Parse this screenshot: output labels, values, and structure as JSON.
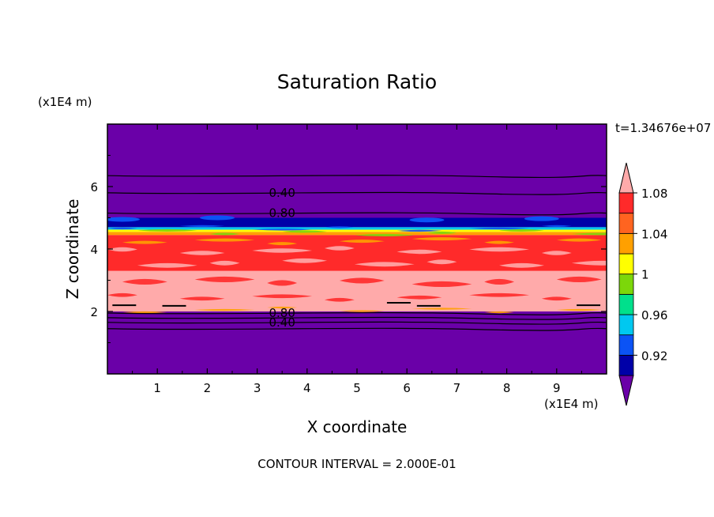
{
  "chart_data": {
    "type": "contour",
    "title": "Saturation Ratio",
    "xlabel": "X coordinate",
    "ylabel": "Z coordinate",
    "x_unit": "(x1E4 m)",
    "y_unit": "(x1E4 m)",
    "time_label": "t=1.34676e+07",
    "xlim": [
      0,
      10
    ],
    "ylim": [
      0,
      8
    ],
    "xticks": [
      "1",
      "2",
      "3",
      "4",
      "5",
      "6",
      "7",
      "8",
      "9"
    ],
    "yticks": [
      "2",
      "4",
      "6"
    ],
    "contour_interval_text": "CONTOUR INTERVAL = 2.000E-01",
    "contour_labels": [
      {
        "text": "0.40",
        "x": 3.5,
        "z": 5.8
      },
      {
        "text": "0.80",
        "x": 3.5,
        "z": 5.15
      },
      {
        "text": "0.80",
        "x": 3.5,
        "z": 1.95
      },
      {
        "text": "0.40",
        "x": 3.5,
        "z": 1.65
      }
    ],
    "colorbar": {
      "levels": [
        0.9,
        0.92,
        0.94,
        0.96,
        0.98,
        1.0,
        1.02,
        1.04,
        1.06,
        1.08,
        1.1
      ],
      "tick_labels": [
        {
          "text": "1.08",
          "value": 1.08
        },
        {
          "text": "1.04",
          "value": 1.04
        },
        {
          "text": "1",
          "value": 1.0
        },
        {
          "text": "0.96",
          "value": 0.96
        },
        {
          "text": "0.92",
          "value": 0.92
        }
      ],
      "colors": [
        "#6a00a8",
        "#0000a8",
        "#0b53f5",
        "#00c8f0",
        "#00e08c",
        "#7cd70a",
        "#ffff00",
        "#ffa000",
        "#ff6420",
        "#ff2a2a",
        "#ffaaaa"
      ]
    },
    "bands": [
      {
        "z0": 0.0,
        "z1": 2.0,
        "color": "#6a00a8"
      },
      {
        "z0": 2.0,
        "z1": 3.3,
        "color": "#ffaaaa"
      },
      {
        "z0": 3.3,
        "z1": 4.45,
        "color": "#ff2a2a"
      },
      {
        "z0": 4.45,
        "z1": 4.55,
        "color": "#ffa000"
      },
      {
        "z0": 4.55,
        "z1": 4.62,
        "color": "#ffff00"
      },
      {
        "z0": 4.62,
        "z1": 4.7,
        "color": "#00c8f0"
      },
      {
        "z0": 4.7,
        "z1": 5.0,
        "color": "#0000a8"
      },
      {
        "z0": 5.0,
        "z1": 8.0,
        "color": "#6a00a8"
      }
    ],
    "contour_lines_z": [
      1.45,
      1.65,
      1.8,
      1.95,
      5.15,
      5.8,
      6.35
    ]
  }
}
